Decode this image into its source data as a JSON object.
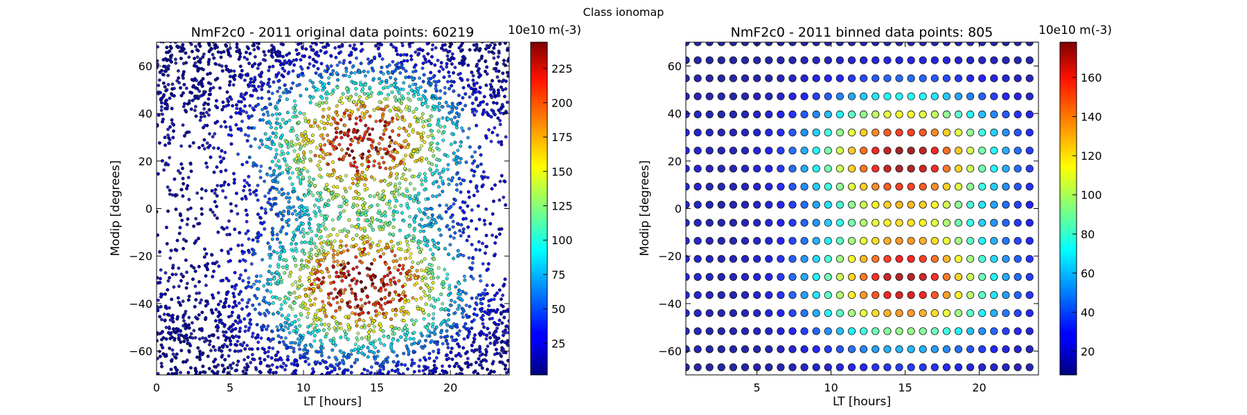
{
  "figure": {
    "suptitle": "Class ionomap"
  },
  "chart_data": [
    {
      "type": "scatter",
      "title": "NmF2c0 - 2011 original data points: 60219",
      "xlabel": "LT [hours]",
      "ylabel": "Modip [degrees]",
      "xlim": [
        0,
        24
      ],
      "ylim": [
        -70,
        70
      ],
      "xticks": [
        0,
        5,
        10,
        15,
        20
      ],
      "yticks": [
        -60,
        -40,
        -20,
        0,
        20,
        40,
        60
      ],
      "colorbar": {
        "label": "10e10 m(-3)",
        "range": [
          2,
          244
        ],
        "ticks": [
          25,
          50,
          75,
          100,
          125,
          150,
          175,
          200,
          225
        ],
        "colormap": "jet"
      },
      "n_points": 60219,
      "value_model": {
        "description": "NmF2 peaks near 13-15 LT at modip ~ +/-28 (equatorial anomaly crests), low at night",
        "crests": [
          {
            "lt": 14,
            "modip": 28,
            "peak": 230
          },
          {
            "lt": 14,
            "modip": -32,
            "peak": 240
          }
        ],
        "night_level": 8
      },
      "grid": false,
      "legend": "none"
    },
    {
      "type": "scatter",
      "title": "NmF2c0 - 2011 binned data points: 805",
      "xlabel": "LT [hours]",
      "ylabel": "Modip [degrees]",
      "xlim": [
        0.2,
        24
      ],
      "ylim": [
        -70,
        70
      ],
      "xticks": [
        5,
        10,
        15,
        20
      ],
      "yticks": [
        -60,
        -40,
        -20,
        0,
        20,
        40,
        60
      ],
      "colorbar": {
        "label": "10e10 m(-3)",
        "range": [
          8,
          178
        ],
        "ticks": [
          20,
          40,
          60,
          80,
          100,
          120,
          140,
          160
        ],
        "colormap": "jet"
      },
      "n_points": 805,
      "bin_lt": [
        0.2,
        24
      ],
      "bin_dlt": 0.8,
      "bin_modip": [
        -70,
        70
      ],
      "bin_dmodip": 7.6,
      "value_model": {
        "description": "binned means: crests near 14-16 LT at modip ~ +22 and ~ -30",
        "crests": [
          {
            "lt": 15,
            "modip": 22,
            "peak": 175
          },
          {
            "lt": 15,
            "modip": -31,
            "peak": 170
          }
        ],
        "night_level": 12
      },
      "grid": false,
      "legend": "none"
    }
  ]
}
